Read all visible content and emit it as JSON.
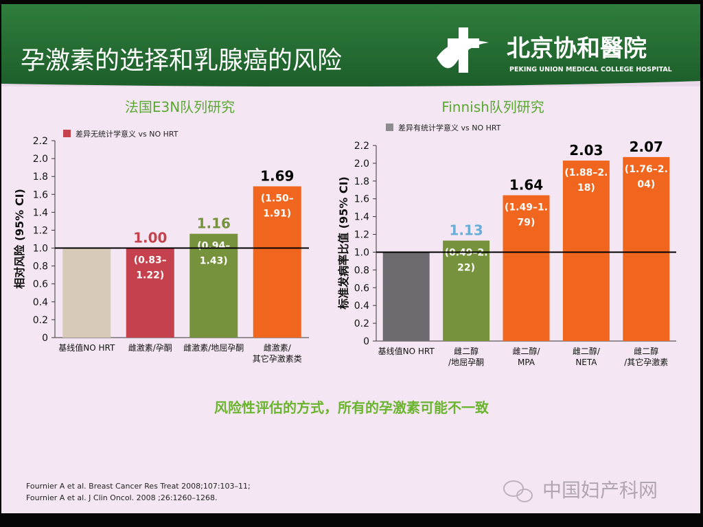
{
  "header": {
    "title": "孕激素的选择和乳腺癌的风险",
    "logo_text": "北京协和醫院",
    "logo_subtitle": "PEKING UNION MEDICAL COLLEGE HOSPITAL"
  },
  "chart_data": [
    {
      "type": "bar",
      "title": "法国E3N队列研究",
      "y_label": "相对风险 (95% CI)",
      "categories": [
        "基线值NO HRT",
        "雌激素/孕酮",
        "雌激素/地屈孕酮",
        "雌激素/\n其它孕激素类"
      ],
      "values": [
        1.0,
        1.0,
        1.16,
        1.69
      ],
      "value_labels": [
        null,
        "1.00",
        "1.16",
        "1.69"
      ],
      "ci_labels": [
        null,
        "(0.83–\n1.22)",
        "(0.94–\n1.43)",
        "(1.50–\n1.91)"
      ],
      "colors": [
        "#d8cab8",
        "#c4414d",
        "#77923d",
        "#f0661f"
      ],
      "value_label_colors": [
        "#000000",
        "#c4414d",
        "#77923d",
        "#000000"
      ],
      "legend": {
        "label": "差异无统计学意义 vs  NO HRT",
        "color": "#c4414d"
      },
      "reference_line": 1.0,
      "ylim": [
        0,
        2.2
      ],
      "yticks": [
        0,
        0.2,
        0.4,
        0.6,
        0.8,
        {
          "value": 1,
          "label": "1.0"
        },
        1.2,
        1.4,
        1.6,
        1.8,
        {
          "value": 2,
          "label": "2.0"
        },
        2.2
      ]
    },
    {
      "type": "bar",
      "title": "Finnish队列研究",
      "y_label": "标准发病率比值 (95% CI)",
      "categories": [
        "基线值NO HRT",
        "雌二醇\n/地屈孕酮",
        "雌二醇/\nMPA",
        "雌二醇/\nNETA",
        "雌二醇\n/其它孕激素"
      ],
      "values": [
        1.0,
        1.13,
        1.64,
        2.03,
        2.07
      ],
      "value_labels": [
        null,
        "1.13",
        "1.64",
        "2.03",
        "2.07"
      ],
      "ci_labels": [
        null,
        "(0.49–2.\n22)",
        "(1.49–1.\n79)",
        "(1.88–2.\n18)",
        "(1.76–2.\n04)"
      ],
      "colors": [
        "#6e6a6f",
        "#77923d",
        "#f0661f",
        "#f0661f",
        "#f0661f"
      ],
      "value_label_colors": [
        "#000000",
        "#6aaed8",
        "#000000",
        "#000000",
        "#000000"
      ],
      "legend": {
        "label": "差异有统计学意义 vs NO HRT",
        "color": "#8e8a90"
      },
      "reference_line": 1.0,
      "ylim": [
        0,
        2.2
      ],
      "yticks": [
        0,
        0.2,
        0.4,
        0.6,
        0.8,
        {
          "value": 1,
          "label": "1.0"
        },
        1.2,
        1.4,
        1.6,
        1.8,
        {
          "value": 2,
          "label": "2.0"
        },
        2.2
      ]
    }
  ],
  "conclusion": "风险性评估的方式，所有的孕激素可能不一致",
  "references": [
    "Fournier A et al. Breast Cancer Res Treat 2008;107:103–11;",
    "Fournier A et al. J Clin Oncol. 2008 ;26:1260–1268."
  ],
  "watermark": "中国妇产科网"
}
